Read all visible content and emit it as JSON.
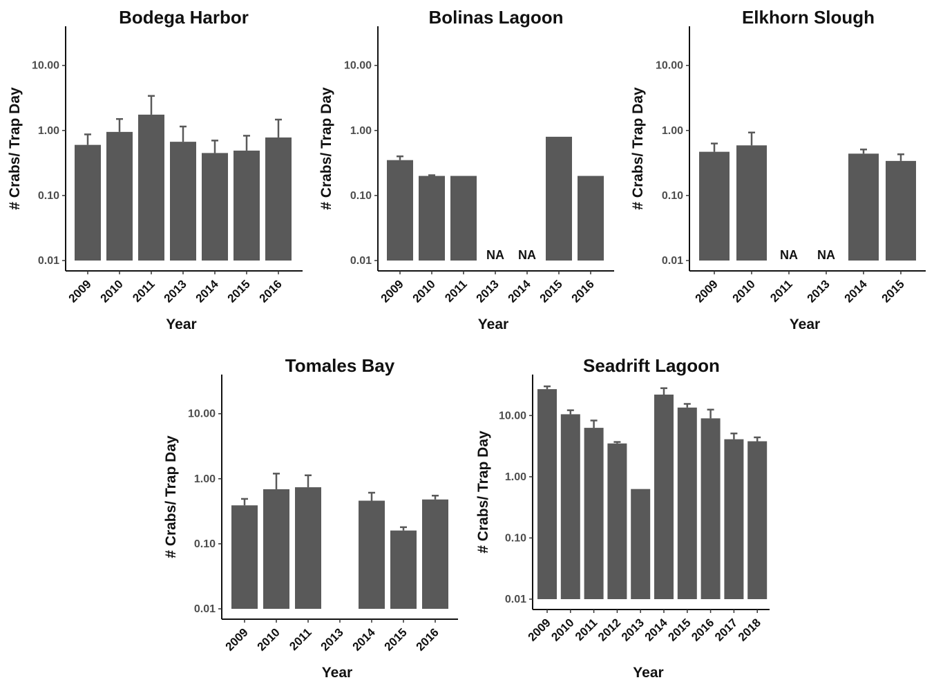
{
  "colors": {
    "bar": "#595959",
    "errorbar": "#595959",
    "axis": "#111111"
  },
  "chart_data": [
    {
      "type": "bar",
      "title": "Bodega Harbor",
      "xlabel": "Year",
      "ylabel": "# Crabs/ Trap Day",
      "yscale": "log10",
      "ylim": [
        0.01,
        40
      ],
      "yticks": [
        0.01,
        0.1,
        1,
        10
      ],
      "ytick_labels": [
        "0.01",
        "0.10",
        "1.00",
        "10.00"
      ],
      "categories": [
        "2009",
        "2010",
        "2011",
        "2013",
        "2014",
        "2015",
        "2016"
      ],
      "values": [
        0.6,
        0.95,
        1.75,
        0.67,
        0.45,
        0.49,
        0.78
      ],
      "error_upper": [
        0.87,
        1.5,
        3.4,
        1.15,
        0.7,
        0.83,
        1.47
      ],
      "na_labels": [
        null,
        null,
        null,
        null,
        null,
        null,
        null
      ],
      "grid": false
    },
    {
      "type": "bar",
      "title": "Bolinas Lagoon",
      "xlabel": "Year",
      "ylabel": "# Crabs/ Trap Day",
      "yscale": "log10",
      "ylim": [
        0.01,
        40
      ],
      "yticks": [
        0.01,
        0.1,
        1,
        10
      ],
      "ytick_labels": [
        "0.01",
        "0.10",
        "1.00",
        "10.00"
      ],
      "categories": [
        "2009",
        "2010",
        "2011",
        "2013",
        "2014",
        "2015",
        "2016"
      ],
      "values": [
        0.35,
        0.2,
        0.2,
        null,
        null,
        0.8,
        0.2
      ],
      "error_upper": [
        0.4,
        0.205,
        null,
        null,
        null,
        null,
        null
      ],
      "na_labels": [
        null,
        null,
        null,
        "NA",
        "NA",
        null,
        null
      ],
      "grid": false
    },
    {
      "type": "bar",
      "title": "Elkhorn Slough",
      "xlabel": "Year",
      "ylabel": "# Crabs/ Trap Day",
      "yscale": "log10",
      "ylim": [
        0.01,
        40
      ],
      "yticks": [
        0.01,
        0.1,
        1,
        10
      ],
      "ytick_labels": [
        "0.01",
        "0.10",
        "1.00",
        "10.00"
      ],
      "categories": [
        "2009",
        "2010",
        "2011",
        "2013",
        "2014",
        "2015"
      ],
      "values": [
        0.47,
        0.59,
        null,
        null,
        0.44,
        0.34
      ],
      "error_upper": [
        0.63,
        0.93,
        null,
        null,
        0.51,
        0.43
      ],
      "na_labels": [
        null,
        null,
        "NA",
        "NA",
        null,
        null
      ],
      "grid": false
    },
    {
      "type": "bar",
      "title": "Tomales Bay",
      "xlabel": "Year",
      "ylabel": "# Crabs/ Trap Day",
      "yscale": "log10",
      "ylim": [
        0.01,
        40
      ],
      "yticks": [
        0.01,
        0.1,
        1,
        10
      ],
      "ytick_labels": [
        "0.01",
        "0.10",
        "1.00",
        "10.00"
      ],
      "categories": [
        "2009",
        "2010",
        "2011",
        "2013",
        "2014",
        "2015",
        "2016"
      ],
      "values": [
        0.39,
        0.69,
        0.74,
        null,
        0.46,
        0.16,
        0.48
      ],
      "error_upper": [
        0.49,
        1.2,
        1.13,
        null,
        0.61,
        0.18,
        0.55
      ],
      "na_labels": [
        null,
        null,
        null,
        null,
        null,
        null,
        null
      ],
      "grid": false
    },
    {
      "type": "bar",
      "title": "Seadrift Lagoon",
      "xlabel": "Year",
      "ylabel": "# Crabs/ Trap Day",
      "yscale": "log10",
      "ylim": [
        0.01,
        40
      ],
      "yticks": [
        0.01,
        0.1,
        1,
        10
      ],
      "ytick_labels": [
        "0.01",
        "0.10",
        "1.00",
        "10.00"
      ],
      "categories": [
        "2009",
        "2010",
        "2011",
        "2012",
        "2013",
        "2014",
        "2015",
        "2016",
        "2017",
        "2018"
      ],
      "values": [
        27,
        10.5,
        6.3,
        3.5,
        0.63,
        22,
        13.5,
        9,
        4.1,
        3.8
      ],
      "error_upper": [
        30,
        12.2,
        8.3,
        3.7,
        null,
        28,
        15.5,
        12.5,
        5.1,
        4.4
      ],
      "na_labels": [
        null,
        null,
        null,
        null,
        null,
        null,
        null,
        null,
        null,
        null
      ],
      "grid": false
    }
  ]
}
